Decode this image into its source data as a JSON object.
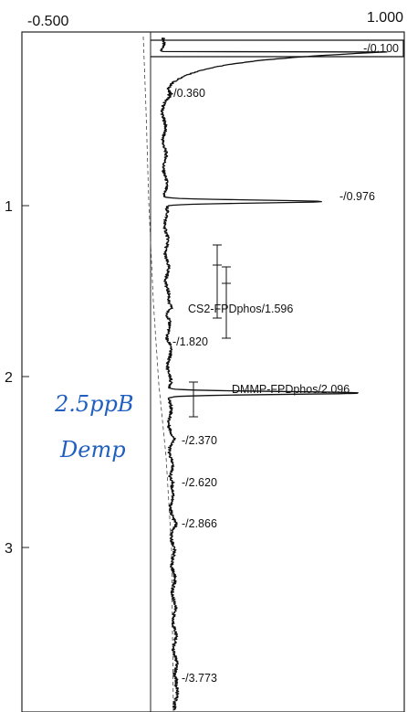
{
  "chart_data": {
    "type": "line",
    "x_axis": {
      "range": [
        -0.5,
        1.0
      ],
      "tick_labels": [
        "-0.500",
        "1.000"
      ]
    },
    "y_axis": {
      "range": [
        0,
        4.0
      ],
      "ticks": [
        1,
        2,
        3
      ],
      "tick_labels": [
        "1",
        "2",
        "3"
      ]
    },
    "grid": false,
    "peak_labels": [
      {
        "label": "-/0.100",
        "time": 0.1
      },
      {
        "label": "-/0.360",
        "time": 0.36
      },
      {
        "label": "-/0.976",
        "time": 0.976
      },
      {
        "label": "CS2-FPDphos/1.596",
        "time": 1.596
      },
      {
        "label": "-/1.820",
        "time": 1.82
      },
      {
        "label": "DMMP-FPDphos/2.096",
        "time": 2.096
      },
      {
        "label": "-/2.370",
        "time": 2.37
      },
      {
        "label": "-/2.620",
        "time": 2.62
      },
      {
        "label": "-/2.866",
        "time": 2.866
      },
      {
        "label": "-/3.773",
        "time": 3.773
      }
    ],
    "peaks": [
      {
        "time": 0.1,
        "height": 1.0
      },
      {
        "time": 0.36,
        "height": 0.02
      },
      {
        "time": 0.976,
        "height": 0.62
      },
      {
        "time": 1.596,
        "height": 0.02
      },
      {
        "time": 1.82,
        "height": 0.01
      },
      {
        "time": 2.096,
        "height": 0.75
      },
      {
        "time": 2.37,
        "height": 0.01
      },
      {
        "time": 2.62,
        "height": 0.01
      },
      {
        "time": 2.866,
        "height": 0.01
      },
      {
        "time": 3.773,
        "height": 0.01
      }
    ],
    "integration_bars": [
      1.3,
      1.4,
      1.48,
      1.58,
      1.65,
      1.68,
      2.07,
      2.23
    ],
    "handwritten_note": [
      "2.5ppB",
      "Demp"
    ]
  }
}
